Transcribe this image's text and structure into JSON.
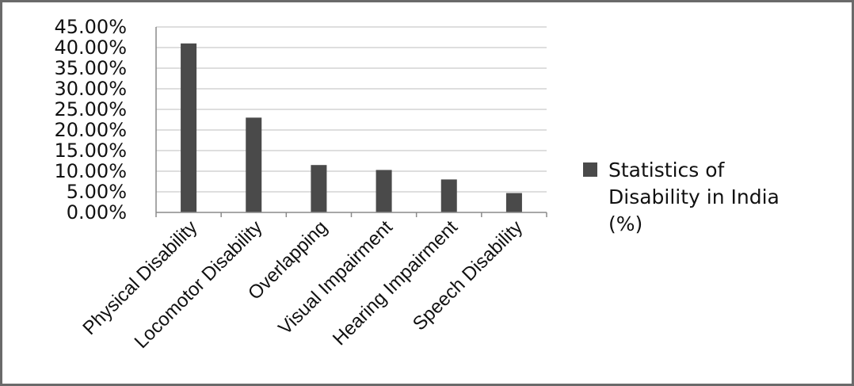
{
  "chart_data": {
    "type": "bar",
    "categories": [
      "Physical Disability",
      "Locomotor Disability",
      "Overlapping",
      "Visual Impairment",
      "Hearing Impairment",
      "Speech Disability"
    ],
    "series": [
      {
        "name": "Statistics of Disability in India (%)",
        "values": [
          41.0,
          23.0,
          11.5,
          10.3,
          8.0,
          4.7
        ]
      }
    ],
    "y_ticks": [
      "0.00%",
      "5.00%",
      "10.00%",
      "15.00%",
      "20.00%",
      "25.00%",
      "30.00%",
      "35.00%",
      "40.00%",
      "45.00%"
    ],
    "ylim": [
      0,
      45
    ],
    "grid": true,
    "legend_position": "right",
    "legend_lines": [
      "Statistics of",
      "Disability in India",
      "(%)"
    ],
    "colors": {
      "bar": "#4a4a4a",
      "grid": "#d4d4d4",
      "axis": "#8a8a8a",
      "border": "#6a6a6a"
    }
  }
}
